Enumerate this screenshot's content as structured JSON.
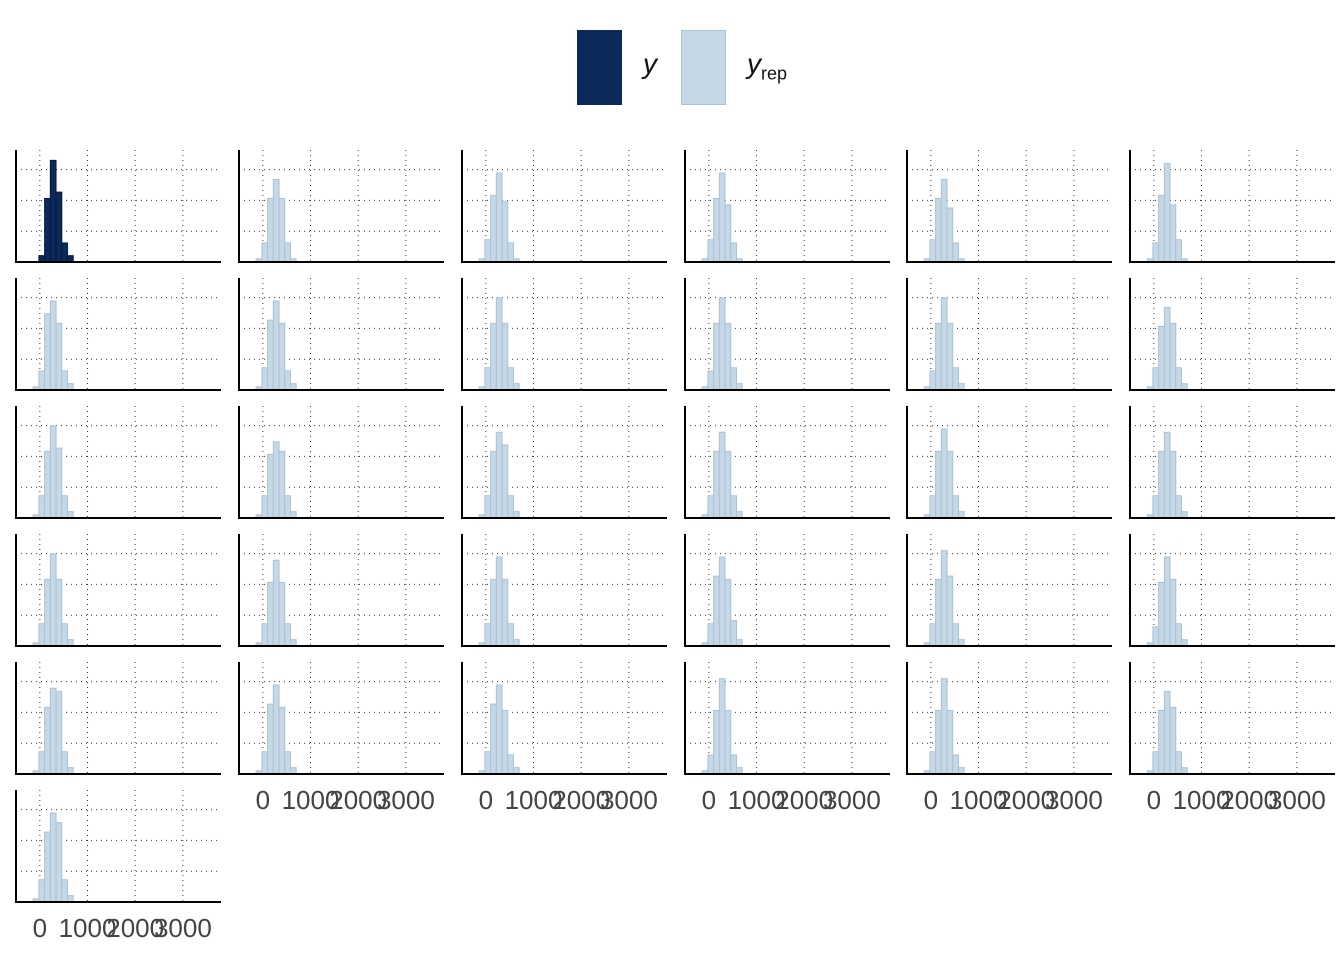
{
  "legend": {
    "y_label": "y",
    "yrep_label": "y",
    "yrep_sub": "rep"
  },
  "colors": {
    "y_fill": "#0b2a5b",
    "y_stroke": "#06193a",
    "yrep_fill": "#c6d8e6",
    "yrep_stroke": "#a9c3d6",
    "axis": "#000000",
    "grid": "#333333",
    "tick_text": "#444444"
  },
  "chart_data": {
    "type": "bar",
    "layout": {
      "rows": 6,
      "cols": 6,
      "panels": 31
    },
    "xlim": [
      -500,
      3800
    ],
    "x_ticks": [
      0,
      1000,
      2000,
      3000
    ],
    "x_tick_labels": [
      "0",
      "1000",
      "2000",
      "3000"
    ],
    "bin_width": 120,
    "bin_centers": [
      -80,
      40,
      160,
      280,
      400,
      520,
      640,
      760,
      880
    ],
    "grid": "dotted",
    "legend_position": "top",
    "panels": [
      {
        "series": "y",
        "counts": [
          0,
          2,
          20,
          32,
          22,
          6,
          2,
          0,
          0
        ]
      },
      {
        "series": "yrep",
        "counts": [
          1,
          6,
          20,
          26,
          20,
          6,
          1,
          0,
          0
        ]
      },
      {
        "series": "yrep",
        "counts": [
          1,
          7,
          21,
          28,
          19,
          6,
          1,
          0,
          0
        ]
      },
      {
        "series": "yrep",
        "counts": [
          1,
          7,
          20,
          28,
          18,
          6,
          1,
          0,
          0
        ]
      },
      {
        "series": "yrep",
        "counts": [
          1,
          7,
          20,
          26,
          17,
          6,
          1,
          0,
          0
        ]
      },
      {
        "series": "yrep",
        "counts": [
          1,
          6,
          21,
          31,
          18,
          7,
          1,
          0,
          0
        ]
      },
      {
        "series": "yrep",
        "counts": [
          1,
          6,
          24,
          28,
          21,
          6,
          2,
          0,
          0
        ]
      },
      {
        "series": "yrep",
        "counts": [
          1,
          7,
          22,
          28,
          21,
          6,
          2,
          0,
          0
        ]
      },
      {
        "series": "yrep",
        "counts": [
          1,
          7,
          21,
          29,
          21,
          7,
          2,
          0,
          0
        ]
      },
      {
        "series": "yrep",
        "counts": [
          1,
          6,
          21,
          29,
          21,
          7,
          2,
          0,
          0
        ]
      },
      {
        "series": "yrep",
        "counts": [
          1,
          6,
          21,
          29,
          21,
          7,
          2,
          0,
          0
        ]
      },
      {
        "series": "yrep",
        "counts": [
          1,
          7,
          20,
          26,
          21,
          7,
          2,
          0,
          0
        ]
      },
      {
        "series": "yrep",
        "counts": [
          1,
          7,
          21,
          29,
          22,
          7,
          2,
          0,
          0
        ]
      },
      {
        "series": "yrep",
        "counts": [
          1,
          7,
          20,
          24,
          21,
          7,
          2,
          0,
          0
        ]
      },
      {
        "series": "yrep",
        "counts": [
          1,
          7,
          21,
          27,
          23,
          7,
          2,
          0,
          0
        ]
      },
      {
        "series": "yrep",
        "counts": [
          1,
          7,
          21,
          27,
          21,
          7,
          2,
          0,
          0
        ]
      },
      {
        "series": "yrep",
        "counts": [
          1,
          7,
          21,
          28,
          21,
          7,
          2,
          0,
          0
        ]
      },
      {
        "series": "yrep",
        "counts": [
          1,
          7,
          21,
          27,
          21,
          7,
          2,
          0,
          0
        ]
      },
      {
        "series": "yrep",
        "counts": [
          1,
          7,
          21,
          29,
          21,
          7,
          2,
          0,
          0
        ]
      },
      {
        "series": "yrep",
        "counts": [
          1,
          7,
          20,
          27,
          20,
          7,
          2,
          0,
          0
        ]
      },
      {
        "series": "yrep",
        "counts": [
          1,
          7,
          21,
          28,
          21,
          7,
          2,
          0,
          0
        ]
      },
      {
        "series": "yrep",
        "counts": [
          1,
          7,
          22,
          28,
          21,
          8,
          2,
          0,
          0
        ]
      },
      {
        "series": "yrep",
        "counts": [
          1,
          7,
          21,
          30,
          22,
          7,
          2,
          0,
          0
        ]
      },
      {
        "series": "yrep",
        "counts": [
          1,
          6,
          20,
          28,
          21,
          7,
          2,
          0,
          0
        ]
      },
      {
        "series": "yrep",
        "counts": [
          1,
          7,
          21,
          27,
          26,
          7,
          2,
          0,
          0
        ]
      },
      {
        "series": "yrep",
        "counts": [
          1,
          7,
          22,
          28,
          21,
          7,
          2,
          0,
          0
        ]
      },
      {
        "series": "yrep",
        "counts": [
          1,
          7,
          22,
          28,
          20,
          6,
          2,
          0,
          0
        ]
      },
      {
        "series": "yrep",
        "counts": [
          1,
          6,
          20,
          30,
          20,
          6,
          2,
          0,
          0
        ]
      },
      {
        "series": "yrep",
        "counts": [
          1,
          7,
          20,
          30,
          20,
          6,
          2,
          0,
          0
        ]
      },
      {
        "series": "yrep",
        "counts": [
          1,
          7,
          20,
          26,
          21,
          7,
          2,
          0,
          0
        ]
      },
      {
        "series": "yrep",
        "counts": [
          1,
          7,
          22,
          28,
          25,
          7,
          2,
          0,
          0
        ]
      }
    ]
  }
}
